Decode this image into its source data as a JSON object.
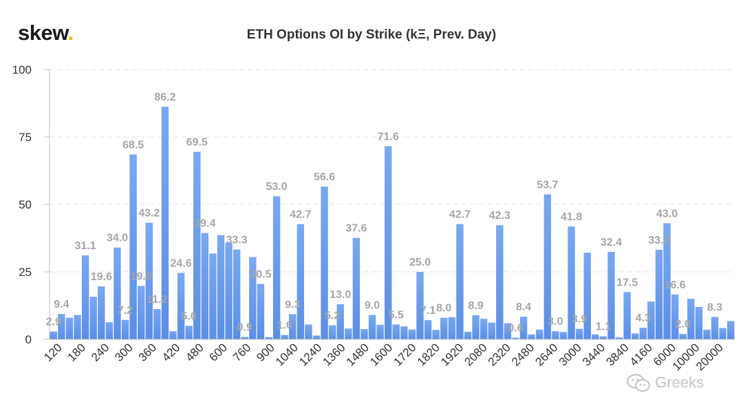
{
  "logo": {
    "text": "skew",
    "dot": "."
  },
  "watermark": {
    "icon": "wechat-icon",
    "text": "Greeks"
  },
  "colors": {
    "bar": "#5b8ee6",
    "bar_light": "#7aa8f0",
    "grid": "#e3e3e3",
    "label": "#a6a6a6",
    "logo_dot": "#f0b400"
  },
  "chart_data": {
    "type": "bar",
    "title": "ETH Options OI by Strike (kΞ, Prev. Day)",
    "xlabel": "",
    "ylabel": "",
    "ylim": [
      0,
      100
    ],
    "yticks": [
      0,
      25,
      50,
      75,
      100
    ],
    "grid": "horizontal dashed",
    "xtick_labels": [
      "120",
      "180",
      "240",
      "300",
      "360",
      "420",
      "480",
      "600",
      "760",
      "900",
      "1040",
      "1240",
      "1360",
      "1480",
      "1600",
      "1720",
      "1820",
      "1920",
      "2080",
      "2320",
      "2480",
      "2640",
      "3000",
      "3440",
      "3840",
      "4160",
      "6000",
      "10000",
      "20000"
    ],
    "values": [
      2.9,
      9.4,
      8.0,
      9.0,
      31.1,
      15.8,
      19.6,
      6.3,
      34.0,
      7.2,
      68.5,
      19.8,
      43.2,
      11.2,
      86.2,
      3.0,
      24.6,
      5.0,
      69.5,
      39.4,
      31.8,
      38.6,
      35.8,
      33.3,
      0.9,
      30.5,
      20.5,
      0.8,
      53.0,
      1.6,
      9.3,
      42.7,
      5.5,
      1.4,
      56.6,
      5.2,
      13.0,
      4.0,
      37.6,
      3.8,
      9.0,
      5.4,
      71.6,
      5.5,
      4.8,
      3.6,
      25.0,
      7.1,
      3.5,
      8.0,
      8.2,
      42.7,
      2.8,
      8.9,
      7.6,
      6.2,
      42.3,
      6.0,
      0.6,
      8.4,
      1.8,
      3.6,
      53.7,
      3.0,
      2.7,
      41.8,
      3.9,
      32.1,
      1.8,
      1.1,
      32.4,
      0.7,
      17.5,
      2.2,
      4.3,
      14.0,
      33.2,
      43.0,
      16.6,
      2.0,
      15.0,
      12.0,
      3.6,
      8.3,
      4.2,
      6.8
    ],
    "data_labels": [
      {
        "bar": 0,
        "text": "2.9"
      },
      {
        "bar": 1,
        "text": "9.4"
      },
      {
        "bar": 4,
        "text": "31.1"
      },
      {
        "bar": 6,
        "text": "19.6"
      },
      {
        "bar": 8,
        "text": "34.0"
      },
      {
        "bar": 9,
        "text": "7.2"
      },
      {
        "bar": 10,
        "text": "68.5"
      },
      {
        "bar": 11,
        "text": "19.8"
      },
      {
        "bar": 12,
        "text": "43.2"
      },
      {
        "bar": 13,
        "text": "11.2"
      },
      {
        "bar": 14,
        "text": "86.2"
      },
      {
        "bar": 16,
        "text": "24.6"
      },
      {
        "bar": 17,
        "text": "5.0"
      },
      {
        "bar": 18,
        "text": "69.5"
      },
      {
        "bar": 19,
        "text": "39.4"
      },
      {
        "bar": 23,
        "text": "33.3"
      },
      {
        "bar": 24,
        "text": "0.9"
      },
      {
        "bar": 26,
        "text": "20.5"
      },
      {
        "bar": 28,
        "text": "53.0"
      },
      {
        "bar": 29,
        "text": "1.6"
      },
      {
        "bar": 30,
        "text": "9.3"
      },
      {
        "bar": 31,
        "text": "42.7"
      },
      {
        "bar": 34,
        "text": "56.6"
      },
      {
        "bar": 35,
        "text": "5.2"
      },
      {
        "bar": 36,
        "text": "13.0"
      },
      {
        "bar": 38,
        "text": "37.6"
      },
      {
        "bar": 40,
        "text": "9.0"
      },
      {
        "bar": 42,
        "text": "71.6"
      },
      {
        "bar": 43,
        "text": "5.5"
      },
      {
        "bar": 46,
        "text": "25.0"
      },
      {
        "bar": 47,
        "text": "7.1"
      },
      {
        "bar": 49,
        "text": "8.0"
      },
      {
        "bar": 51,
        "text": "42.7"
      },
      {
        "bar": 53,
        "text": "8.9"
      },
      {
        "bar": 56,
        "text": "42.3"
      },
      {
        "bar": 58,
        "text": "0.6"
      },
      {
        "bar": 59,
        "text": "8.4"
      },
      {
        "bar": 62,
        "text": "53.7"
      },
      {
        "bar": 63,
        "text": "3.0"
      },
      {
        "bar": 65,
        "text": "41.8"
      },
      {
        "bar": 66,
        "text": "3.9"
      },
      {
        "bar": 69,
        "text": "1.1"
      },
      {
        "bar": 70,
        "text": "32.4"
      },
      {
        "bar": 72,
        "text": "17.5"
      },
      {
        "bar": 74,
        "text": "4.3"
      },
      {
        "bar": 76,
        "text": "33.2"
      },
      {
        "bar": 77,
        "text": "43.0"
      },
      {
        "bar": 78,
        "text": "16.6"
      },
      {
        "bar": 79,
        "text": "2.0"
      },
      {
        "bar": 83,
        "text": "8.3"
      }
    ]
  }
}
